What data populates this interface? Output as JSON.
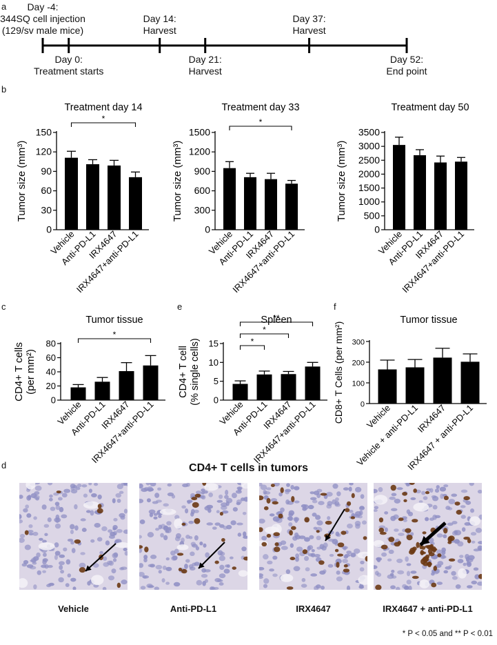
{
  "panel_letters": {
    "a": "a",
    "b": "b",
    "c": "c",
    "e": "e",
    "f": "f",
    "d": "d"
  },
  "timeline": {
    "events": [
      {
        "day": -4,
        "above": true,
        "lines": [
          "Day -4:",
          "344SQ cell injection",
          "(129/sv male mice)"
        ]
      },
      {
        "day": 0,
        "above": false,
        "lines": [
          "Day 0:",
          "Treatment starts"
        ]
      },
      {
        "day": 14,
        "above": true,
        "lines": [
          "Day 14:",
          "Harvest"
        ]
      },
      {
        "day": 21,
        "above": false,
        "lines": [
          "Day 21:",
          "Harvest"
        ]
      },
      {
        "day": 37,
        "above": true,
        "lines": [
          "Day 37:",
          "Harvest"
        ]
      },
      {
        "day": 52,
        "above": false,
        "lines": [
          "Day 52:",
          "End point"
        ]
      }
    ]
  },
  "chart_data": [
    {
      "id": "b1",
      "type": "bar",
      "title": "Treatment day 14",
      "ylabel": "Tumor size (mm³)",
      "categories": [
        "Vehicle",
        "Anti-PD-L1",
        "IRX4647",
        "IRX4647+anti-PD-L1"
      ],
      "values": [
        111,
        101,
        99,
        81
      ],
      "errors": [
        10,
        7,
        8,
        8
      ],
      "ylim": [
        0,
        150
      ],
      "yticks": [
        0,
        30,
        60,
        90,
        120,
        150
      ],
      "significance": [
        {
          "from": 0,
          "to": 3,
          "label": "*"
        }
      ]
    },
    {
      "id": "b2",
      "type": "bar",
      "title": "Treatment day 33",
      "ylabel": "Tumor size (mm³)",
      "categories": [
        "Vehicle",
        "Anti-PD-L1",
        "IRX4647",
        "IRX4647+anti-PD-L1"
      ],
      "values": [
        950,
        810,
        780,
        710
      ],
      "errors": [
        100,
        60,
        90,
        50
      ],
      "ylim": [
        0,
        1500
      ],
      "yticks": [
        0,
        300,
        600,
        900,
        1200,
        1500
      ],
      "significance": [
        {
          "from": 0,
          "to": 3,
          "label": "*"
        }
      ]
    },
    {
      "id": "b3",
      "type": "bar",
      "title": "Treatment day 50",
      "ylabel": "Tumor size (mm³)",
      "categories": [
        "Vehicle",
        "Anti-PD-L1",
        "IRX4647",
        "IRX4647+anti-PD-L1"
      ],
      "values": [
        3050,
        2680,
        2420,
        2450
      ],
      "errors": [
        280,
        200,
        230,
        150
      ],
      "ylim": [
        0,
        3500
      ],
      "yticks": [
        0,
        500,
        1000,
        1500,
        2000,
        2500,
        3000,
        3500
      ],
      "significance": []
    },
    {
      "id": "c",
      "type": "bar",
      "title": "Tumor tissue",
      "ylabel": "CD4+ T cells (per mm²)",
      "categories": [
        "Vehicle",
        "Anti-PD-L1",
        "IRX4647",
        "IRX4647+anti-PD-L1"
      ],
      "values": [
        18,
        26,
        41,
        49
      ],
      "errors": [
        4,
        6,
        12,
        14
      ],
      "ylim": [
        0,
        80
      ],
      "yticks": [
        0,
        20,
        40,
        60,
        80
      ],
      "significance": [
        {
          "from": 0,
          "to": 3,
          "label": "*"
        }
      ]
    },
    {
      "id": "e",
      "type": "bar",
      "title": "Spleen",
      "ylabel": "CD4+ T cell (% single cells)",
      "categories": [
        "Vehicle",
        "Anti-PD-L1",
        "IRX4647",
        "IRX4647+anti-PD-L1"
      ],
      "values": [
        4.3,
        6.8,
        6.9,
        8.9
      ],
      "errors": [
        0.8,
        0.9,
        0.7,
        1.1
      ],
      "ylim": [
        0,
        15
      ],
      "yticks": [
        0,
        5,
        10,
        15
      ],
      "significance": [
        {
          "from": 0,
          "to": 1,
          "label": "*"
        },
        {
          "from": 0,
          "to": 2,
          "label": "*"
        },
        {
          "from": 0,
          "to": 3,
          "label": "**"
        }
      ]
    },
    {
      "id": "f",
      "type": "bar",
      "title": "Tumor tissue",
      "ylabel": "CD8+ T Cells (per mm²)",
      "categories": [
        "Vehicle",
        "Vehicle + anti-PD-L1",
        "IRX4647",
        "IRX4647 + anti-PD-L1"
      ],
      "values": [
        165,
        175,
        222,
        202
      ],
      "errors": [
        45,
        38,
        45,
        38
      ],
      "ylim": [
        0,
        300
      ],
      "yticks": [
        0,
        100,
        200,
        300
      ],
      "significance": []
    }
  ],
  "panel_d": {
    "title": "CD4+ T cells in tumors",
    "images": [
      {
        "label": "Vehicle",
        "density": "low"
      },
      {
        "label": "Anti-PD-L1",
        "density": "medium"
      },
      {
        "label": "IRX4647",
        "density": "medium-high"
      },
      {
        "label": "IRX4647 + anti-PD-L1",
        "density": "high"
      }
    ]
  },
  "footnote": "* P < 0.05 and ** P < 0.01",
  "colors": {
    "bar": "#000000",
    "stain_background": "#dcd6e6",
    "nuclei": "#8f8fc4",
    "positive_cells": "#6b3a14"
  }
}
